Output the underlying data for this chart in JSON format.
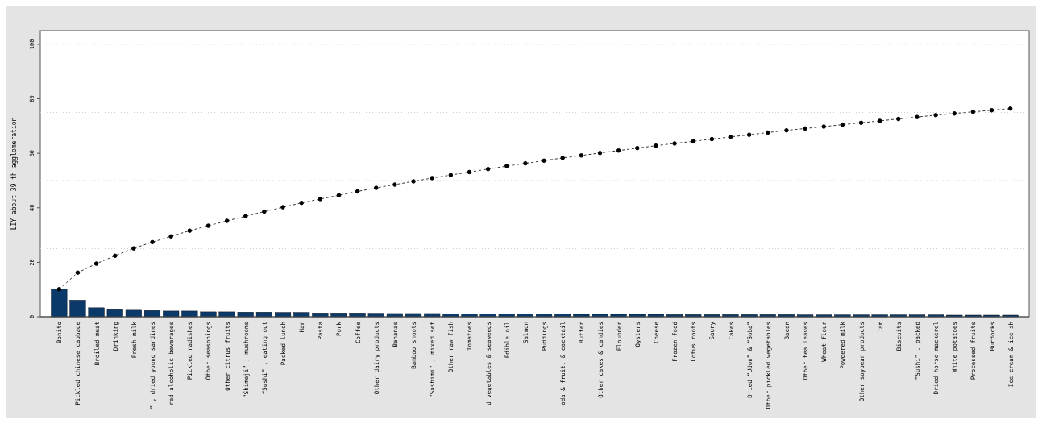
{
  "chart_data": {
    "type": "bar",
    "ylabel": "LIY about 39 th agglomeration",
    "categories": [
      "Bonito",
      "Pickled chinese cabbage",
      "Broiled meat",
      "Drinking",
      "Fresh milk",
      "” , dried young sardines",
      "red alcoholic beverages",
      "Pickled radishes",
      "Other seasonings",
      "Other citrus fruits",
      "“Shimeji” , mushrooms",
      "“Sushi” , eating out",
      "Packed lunch",
      "Ham",
      "Pasta",
      "Pork",
      "Coffee",
      "Other dairy products",
      "Bananas",
      "Bamboo shoots",
      "“Sashimi” , mixed set",
      "Other raw fish",
      "Tomatoes",
      "d vegetables & seaweeds",
      "Edible oil",
      "Salmon",
      "Puddings",
      "oda & fruit, & cocktail",
      "Butter",
      "Other cakes & candies",
      "Flounder",
      "Oysters",
      "Cheese",
      "Frozen food",
      "Lotus roots",
      "Saury",
      "Cakes",
      "Dried “Udon” & “Soba”",
      "Other pickled vegetables",
      "Bacon",
      "Other tea leaves",
      "Wheat flour",
      "Powdered milk",
      "Other soybean products",
      "Jam",
      "Biscuits",
      "“Sushi” , packed",
      "Dried horse mackerel",
      "White potatoes",
      "Processed fruits",
      "Burdocks",
      "Ice cream & ice sh"
    ],
    "series": [
      {
        "color": "#0b3a6a",
        "values": [
          10.1,
          6.1,
          3.3,
          2.9,
          2.7,
          2.3,
          2.1,
          2.1,
          1.8,
          1.8,
          1.7,
          1.7,
          1.6,
          1.6,
          1.4,
          1.4,
          1.4,
          1.3,
          1.2,
          1.2,
          1.2,
          1.1,
          1.1,
          1.1,
          1.1,
          1.0,
          1.0,
          1.0,
          0.9,
          0.9,
          0.9,
          0.9,
          0.9,
          0.8,
          0.8,
          0.8,
          0.8,
          0.8,
          0.8,
          0.8,
          0.7,
          0.7,
          0.7,
          0.7,
          0.7,
          0.7,
          0.7,
          0.7,
          0.6,
          0.6,
          0.6,
          0.6
        ]
      },
      {
        "type": "line",
        "color": "#000000",
        "marker": "circle",
        "line_style": "dashed",
        "values": [
          10.1,
          16.2,
          19.5,
          22.4,
          25.1,
          27.4,
          29.5,
          31.6,
          33.4,
          35.2,
          36.9,
          38.6,
          40.2,
          41.8,
          43.2,
          44.6,
          46.0,
          47.3,
          48.5,
          49.7,
          50.9,
          52.0,
          53.1,
          54.2,
          55.3,
          56.3,
          57.3,
          58.3,
          59.2,
          60.1,
          61.0,
          61.9,
          62.8,
          63.6,
          64.4,
          65.2,
          66.0,
          66.8,
          67.6,
          68.4,
          69.1,
          69.8,
          70.5,
          71.2,
          71.9,
          72.6,
          73.3,
          74.0,
          74.6,
          75.2,
          75.8,
          76.4
        ]
      }
    ],
    "ylim": [
      0,
      105
    ],
    "yticks": [
      0,
      20,
      40,
      60,
      80,
      100
    ],
    "ref_lines": [
      {
        "axis": "y",
        "value": 25,
        "color": "#cccccc",
        "line_style": "dotted"
      },
      {
        "axis": "y",
        "value": 50,
        "color": "#cccccc",
        "line_style": "dotted"
      },
      {
        "axis": "y",
        "value": 75,
        "color": "#cccccc",
        "line_style": "dotted"
      },
      {
        "axis": "y",
        "value": 100,
        "color": "#cccccc",
        "line_style": "dotted"
      }
    ]
  }
}
